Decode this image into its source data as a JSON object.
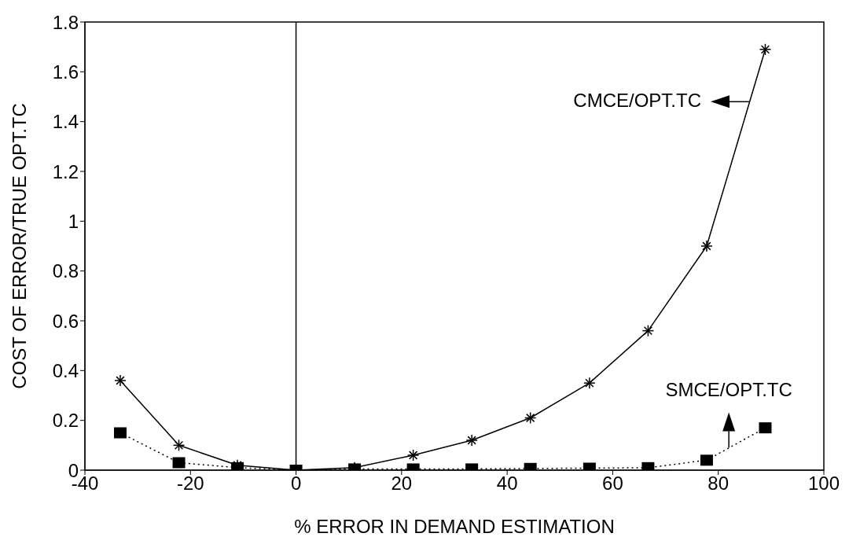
{
  "chart_data": {
    "type": "line",
    "xlabel": "% ERROR IN DEMAND ESTIMATION",
    "ylabel": "COST OF ERROR/TRUE OPT.TC",
    "x": [
      -33.3,
      -22.2,
      -11.1,
      0,
      11.1,
      22.2,
      33.3,
      44.4,
      55.6,
      66.7,
      77.8,
      88.9
    ],
    "series": [
      {
        "color": "#000000",
        "marker": "cross",
        "line_style": "solid",
        "values": [
          0.36,
          0.1,
          0.02,
          0,
          0.01,
          0.06,
          0.12,
          0.21,
          0.35,
          0.56,
          0.9,
          1.69
        ]
      },
      {
        "color": "#000000",
        "marker": "square",
        "line_style": "dotted",
        "values": [
          0.15,
          0.03,
          0.01,
          0,
          0.005,
          0.005,
          0.005,
          0.007,
          0.008,
          0.01,
          0.04,
          0.17
        ]
      }
    ],
    "xlim": [
      -40,
      100
    ],
    "xticks": [
      -40,
      -20,
      0,
      20,
      40,
      60,
      80,
      100
    ],
    "ylim": [
      0,
      1.8
    ],
    "yticks": [
      0,
      0.2,
      0.4,
      0.6,
      0.8,
      1,
      1.2,
      1.4,
      1.6,
      1.8
    ],
    "ref_lines": [
      {
        "axis": "x",
        "value": 0,
        "color": "#000000",
        "line_style": "solid"
      }
    ],
    "annotations": [
      {
        "text": "CMCE/OPT.TC",
        "x": 86,
        "y": 1.48
      },
      {
        "text": "SMCE/OPT.TC",
        "x": 82,
        "y": 0.09
      }
    ],
    "grid": false,
    "legend": false
  }
}
